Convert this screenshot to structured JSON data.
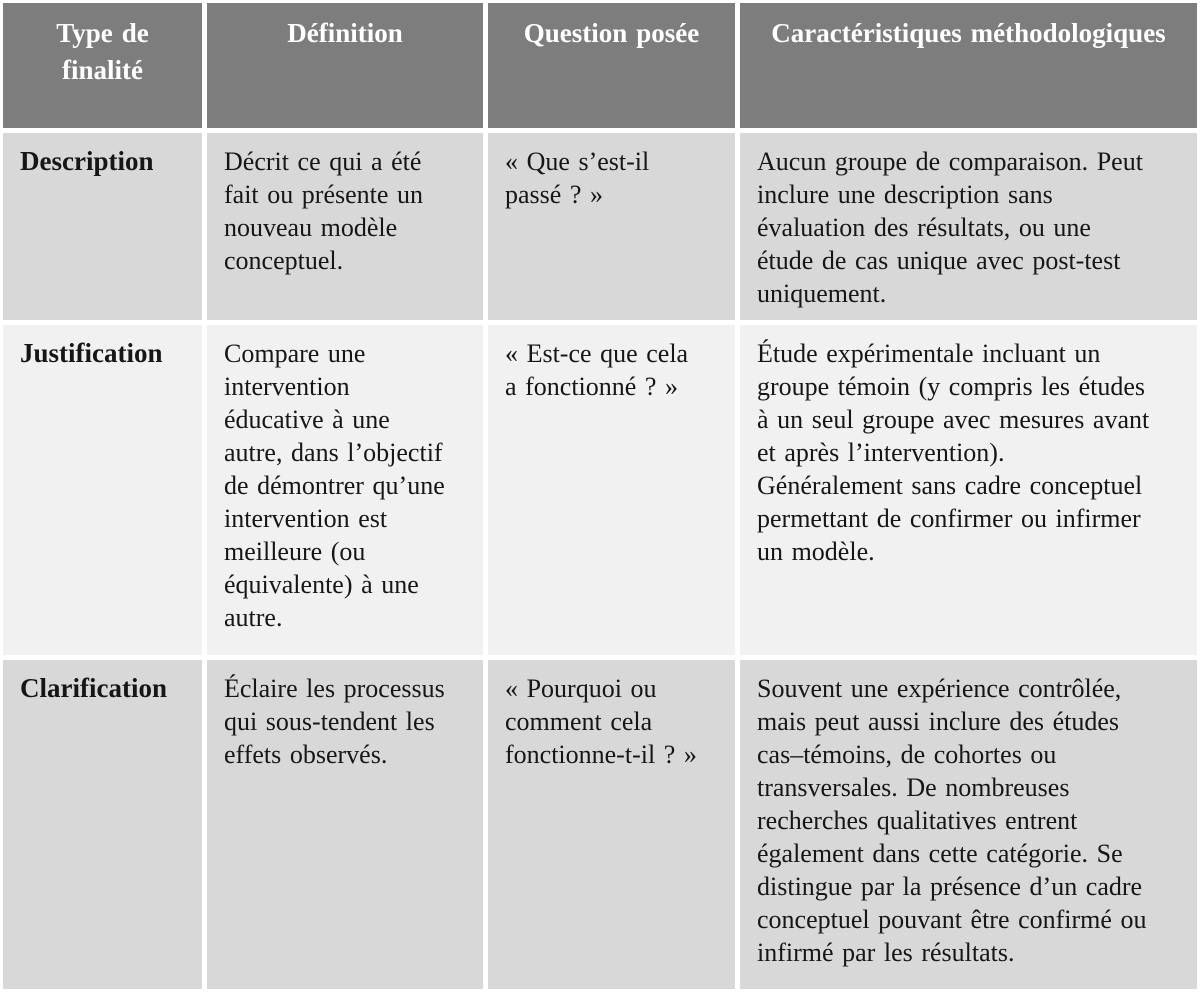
{
  "colors": {
    "header_bg": "#7d7d7d",
    "header_text": "#ffffff",
    "row_shaded_bg": "#d8d8d8",
    "row_light_bg": "#f1f1f1",
    "body_text": "#161616",
    "grid_line": "#ffffff"
  },
  "table": {
    "headers": [
      "Type de\nfinalité",
      "Définition",
      "Question posée",
      "Caractéristiques méthodologiques"
    ],
    "rows": [
      {
        "type": "Description",
        "definition": "Décrit ce qui a été\nfait ou présente un\nnouveau modèle\nconceptuel.",
        "question": "« Que s’est-il\npassé ? »",
        "characteristics": "Aucun groupe de comparaison. Peut\ninclure une description sans\névaluation des résultats, ou une\nétude de cas unique avec post-test\nuniquement."
      },
      {
        "type": "Justification",
        "definition": "Compare une\nintervention\néducative à une\nautre, dans l’objectif\nde démontrer qu’une\nintervention est\nmeilleure (ou\néquivalente) à une\nautre.",
        "question": "« Est-ce que cela\na fonctionné ? »",
        "characteristics": "Étude expérimentale incluant un\ngroupe témoin (y compris les études\nà un seul groupe avec mesures avant\net après l’intervention).\nGénéralement sans cadre conceptuel\npermettant de confirmer ou infirmer\nun modèle."
      },
      {
        "type": "Clarification",
        "definition": "Éclaire les processus\nqui sous-tendent les\neffets observés.",
        "question": "« Pourquoi ou\ncomment cela\nfonctionne-t-il ? »",
        "characteristics": "Souvent une expérience contrôlée,\nmais peut aussi inclure des études\ncas–témoins, de cohortes ou\ntransversales. De nombreuses\nrecherches qualitatives entrent\négalement dans cette catégorie. Se\ndistingue par la présence d’un cadre\nconceptuel pouvant être confirmé ou\ninfirmé par les résultats."
      }
    ]
  }
}
